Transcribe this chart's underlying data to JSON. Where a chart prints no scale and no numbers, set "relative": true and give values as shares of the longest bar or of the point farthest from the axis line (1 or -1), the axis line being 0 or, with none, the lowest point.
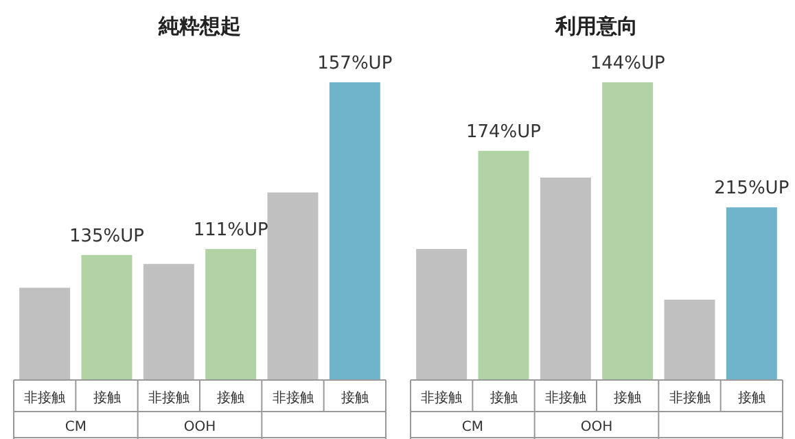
{
  "chart_data": [
    {
      "type": "bar",
      "title": "純粋想起",
      "relative": true,
      "categories": [
        "CM",
        "OOH",
        null
      ],
      "series": [
        {
          "name": "非接触",
          "color": "#c0c0c0",
          "values": [
            0.31,
            0.39,
            0.63
          ]
        },
        {
          "name": "接触",
          "colors": [
            "#b1d3a3",
            "#b1d3a3",
            "#70b4cb"
          ],
          "values": [
            0.42,
            0.44,
            1
          ]
        }
      ],
      "annotations": [
        {
          "text": "135%UP",
          "x": "CM",
          "y": 0.42
        },
        {
          "text": "111%UP",
          "x": "OOH",
          "y": 0.44
        },
        {
          "text": "157%UP",
          "y": 1
        }
      ]
    },
    {
      "type": "bar",
      "title": "利用意向",
      "relative": true,
      "categories": [
        "CM",
        "OOH",
        null
      ],
      "series": [
        {
          "name": "非接触",
          "color": "#c0c0c0",
          "values": [
            0.44,
            0.68,
            0.27
          ]
        },
        {
          "name": "接触",
          "colors": [
            "#b1d3a3",
            "#b1d3a3",
            "#70b4cb"
          ],
          "values": [
            0.77,
            1,
            0.58
          ]
        }
      ],
      "annotations": [
        {
          "text": "174%UP",
          "x": "CM",
          "y": 0.77
        },
        {
          "text": "144%UP",
          "x": "OOH",
          "y": 1
        },
        {
          "text": "215%UP",
          "y": 0.58
        }
      ]
    }
  ]
}
